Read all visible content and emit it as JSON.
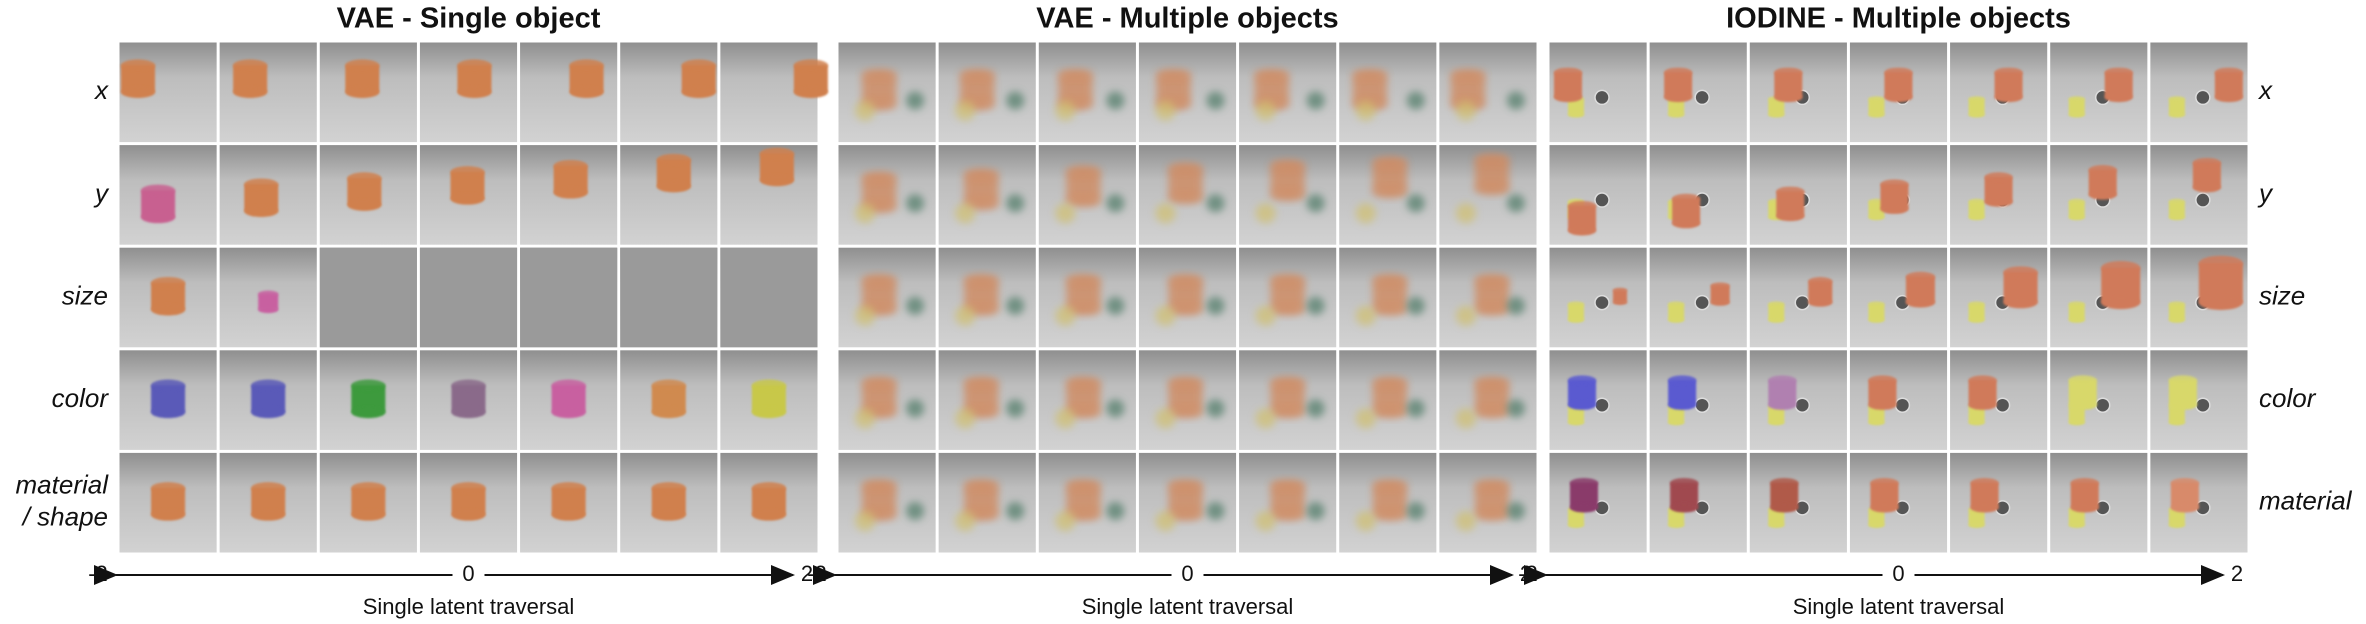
{
  "panels": [
    {
      "title": "VAE - Single object",
      "left_labels": [
        [
          "x"
        ],
        [
          "y"
        ],
        [
          "size"
        ],
        [
          "color"
        ],
        [
          "material",
          "/ shape"
        ]
      ],
      "axis": {
        "left": "-2",
        "middle": "0",
        "right": "2",
        "label": "Single latent traversal"
      }
    },
    {
      "title": "VAE - Multiple objects",
      "axis": {
        "left": "-2",
        "middle": "0",
        "right": "2",
        "label": "Single latent traversal"
      }
    },
    {
      "title": "IODINE - Multiple objects",
      "right_labels": [
        [
          "x"
        ],
        [
          "y"
        ],
        [
          "size"
        ],
        [
          "color"
        ],
        [
          "material"
        ]
      ],
      "axis": {
        "left": "-2",
        "middle": "0",
        "right": "2",
        "label": "Single latent traversal"
      }
    }
  ]
}
